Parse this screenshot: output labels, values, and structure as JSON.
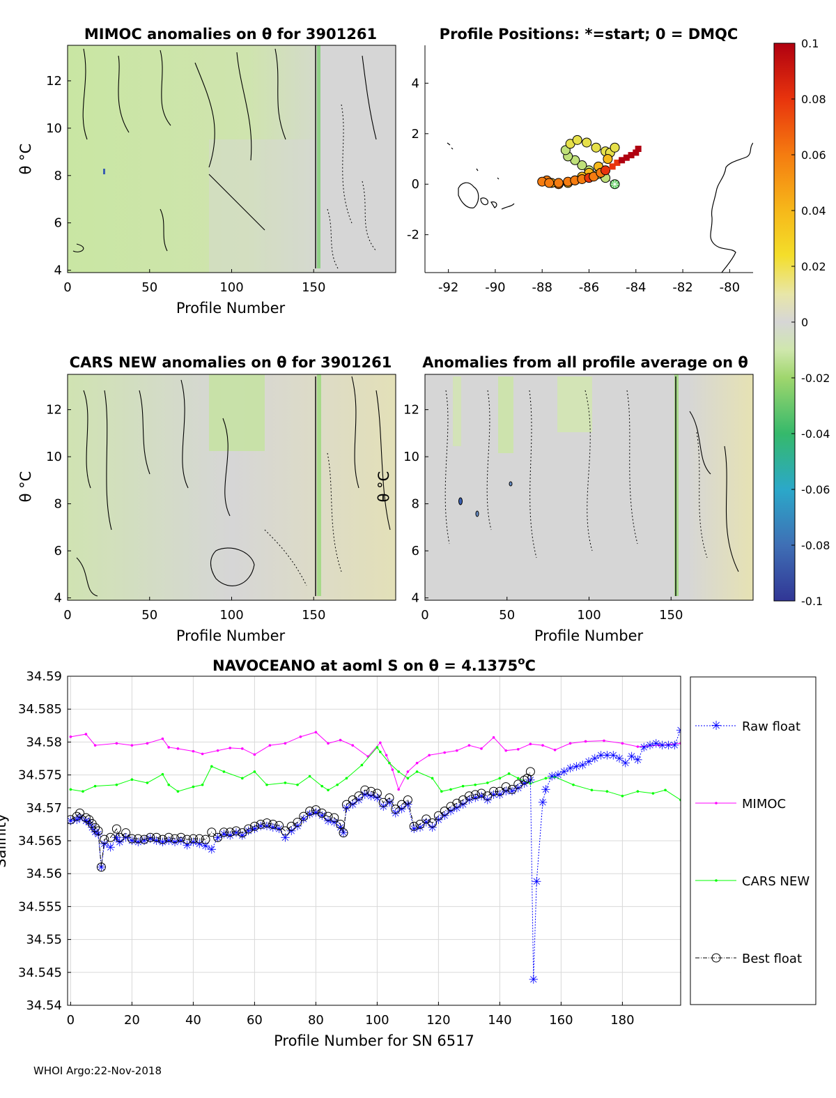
{
  "footer": "WHOI Argo:22-Nov-2018",
  "float_id": "3901261",
  "colors": {
    "raw": "#0000ff",
    "mimoc": "#ff00ff",
    "cars": "#00ff00",
    "best": "#000000",
    "field": "#d6d6d6",
    "anomaly_green": "#c9e6a3",
    "grid": "#d9d9d9"
  },
  "chart_data": [
    {
      "id": "mimoc_anom",
      "type": "heatmap",
      "title": "MIMOC anomalies on θ  for 3901261",
      "xlabel": "Profile Number",
      "ylabel": "θ °C",
      "xlim": [
        0,
        200
      ],
      "ylim": [
        3.9,
        13.5
      ],
      "xticks": [
        0,
        50,
        100,
        150
      ],
      "yticks": [
        4,
        6,
        8,
        10,
        12
      ]
    },
    {
      "id": "positions",
      "type": "scatter",
      "title": "Profile Positions: *=start; 0 = DMQC",
      "xlim": [
        -93,
        -79
      ],
      "ylim": [
        -3.5,
        5.5
      ],
      "xticks": [
        -92,
        -90,
        -88,
        -86,
        -84,
        -82,
        -80
      ],
      "yticks": [
        -2,
        0,
        2,
        4
      ],
      "track_lon": [
        -84.9,
        -85.3,
        -85.6,
        -86.0,
        -86.3,
        -86.6,
        -86.9,
        -87.0,
        -86.8,
        -86.5,
        -86.1,
        -85.7,
        -85.3,
        -85.1,
        -84.9,
        -85.2,
        -85.6,
        -86.0,
        -86.3,
        -86.6,
        -86.9,
        -87.3,
        -87.6,
        -87.8,
        -88.0,
        -87.7,
        -87.3,
        -86.9,
        -86.6,
        -86.3,
        -86.0,
        -85.8,
        -85.5,
        -85.3,
        -85.0,
        -84.8,
        -84.6,
        -84.4,
        -84.2,
        -84.0,
        -83.9
      ],
      "track_lat": [
        0.0,
        0.25,
        0.4,
        0.55,
        0.75,
        0.95,
        1.1,
        1.35,
        1.6,
        1.75,
        1.65,
        1.45,
        1.3,
        1.25,
        1.45,
        1.0,
        0.7,
        0.45,
        0.3,
        0.15,
        0.05,
        0.0,
        0.05,
        0.15,
        0.1,
        0.05,
        0.05,
        0.1,
        0.15,
        0.2,
        0.25,
        0.3,
        0.45,
        0.55,
        0.7,
        0.85,
        0.95,
        1.05,
        1.15,
        1.25,
        1.4
      ],
      "value_min": -0.1,
      "value_max": 0.1
    },
    {
      "id": "colorbar",
      "type": "heatmap",
      "ticks": [
        0.1,
        0.08,
        0.06,
        0.04,
        0.02,
        0,
        -0.02,
        -0.04,
        -0.06,
        -0.08,
        -0.1
      ],
      "tick_labels": [
        "0.1",
        "0.08",
        "0.06",
        "0.04",
        "0.02",
        "0",
        "-0.02",
        "-0.04",
        "-0.06",
        "-0.08",
        "-0.1"
      ]
    },
    {
      "id": "cars_anom",
      "type": "heatmap",
      "title": "CARS NEW anomalies on θ for 3901261",
      "xlabel": "Profile Number",
      "ylabel": "θ °C",
      "xlim": [
        0,
        200
      ],
      "ylim": [
        3.9,
        13.5
      ],
      "xticks": [
        0,
        50,
        100,
        150
      ],
      "yticks": [
        4,
        6,
        8,
        10,
        12
      ]
    },
    {
      "id": "avg_anom",
      "type": "heatmap",
      "title": "Anomalies from all profile average on θ",
      "xlabel": "Profile Number",
      "ylabel": "θ °C",
      "xlim": [
        0,
        200
      ],
      "ylim": [
        3.9,
        13.5
      ],
      "xticks": [
        0,
        50,
        100,
        150
      ],
      "yticks": [
        4,
        6,
        8,
        10,
        12
      ]
    },
    {
      "id": "salinity",
      "type": "line",
      "title_main": "NAVOCEANO at aoml S on θ = 4.1375",
      "title_sup": "o",
      "title_end": "C",
      "xlabel": "Profile Number for SN 6517",
      "ylabel": "Salinity",
      "xlim": [
        -1,
        199
      ],
      "ylim": [
        34.54,
        34.59
      ],
      "xticks": [
        0,
        20,
        40,
        60,
        80,
        100,
        120,
        140,
        160,
        180
      ],
      "yticks": [
        34.54,
        34.545,
        34.55,
        34.555,
        34.56,
        34.565,
        34.57,
        34.575,
        34.58,
        34.585,
        34.59
      ],
      "ytick_labels": [
        "34.54",
        "34.545",
        "34.55",
        "34.555",
        "34.56",
        "34.565",
        "34.57",
        "34.575",
        "34.58",
        "34.585",
        "34.59"
      ],
      "legend": [
        "Raw float",
        "MIMOC",
        "CARS NEW",
        "Best float"
      ],
      "series": {
        "mimoc": {
          "x": [
            0,
            5,
            8,
            15,
            20,
            25,
            30,
            32,
            35,
            40,
            43,
            48,
            52,
            56,
            60,
            65,
            70,
            75,
            80,
            84,
            88,
            92,
            97,
            101,
            103,
            105,
            107,
            110,
            113,
            117,
            122,
            126,
            130,
            134,
            138,
            142,
            146,
            150,
            154,
            158,
            163,
            168,
            174,
            180,
            185,
            192,
            199
          ],
          "y": [
            34.5808,
            34.5812,
            34.5795,
            34.5798,
            34.5795,
            34.5798,
            34.5805,
            34.5792,
            34.579,
            34.5786,
            34.5782,
            34.5787,
            34.5791,
            34.579,
            34.5781,
            34.5795,
            34.5798,
            34.5808,
            34.5815,
            34.5798,
            34.5803,
            34.5795,
            34.5778,
            34.5799,
            34.578,
            34.5758,
            34.5728,
            34.5755,
            34.5768,
            34.578,
            34.5784,
            34.5787,
            34.5795,
            34.579,
            34.5807,
            34.5787,
            34.5789,
            34.5797,
            34.5795,
            34.5788,
            34.5798,
            34.5801,
            34.5802,
            34.5798,
            34.5793,
            34.5795,
            34.5798
          ]
        },
        "cars": {
          "x": [
            0,
            4,
            8,
            15,
            20,
            25,
            30,
            32,
            35,
            40,
            43,
            46,
            50,
            56,
            60,
            64,
            70,
            74,
            78,
            82,
            84,
            87,
            90,
            95,
            100,
            101,
            104,
            107,
            110,
            113,
            118,
            121,
            124,
            128,
            132,
            136,
            140,
            143,
            146,
            150,
            155,
            158,
            164,
            170,
            175,
            180,
            185,
            190,
            194,
            199
          ],
          "y": [
            34.5728,
            34.5725,
            34.5733,
            34.5735,
            34.5743,
            34.5738,
            34.5751,
            34.5735,
            34.5725,
            34.5732,
            34.5735,
            34.5763,
            34.5755,
            34.5745,
            34.5755,
            34.5735,
            34.5738,
            34.5735,
            34.5748,
            34.5733,
            34.5727,
            34.5735,
            34.5745,
            34.5765,
            34.5792,
            34.5785,
            34.5768,
            34.5755,
            34.5745,
            34.5755,
            34.5745,
            34.5725,
            34.5728,
            34.5733,
            34.5735,
            34.5738,
            34.5745,
            34.5752,
            34.5745,
            34.5737,
            34.5745,
            34.5747,
            34.5735,
            34.5727,
            34.5725,
            34.5718,
            34.5725,
            34.5722,
            34.5727,
            34.5712
          ]
        },
        "best": {
          "x": [
            0,
            2,
            3,
            5,
            6,
            7,
            8,
            9,
            10,
            11,
            13,
            15,
            16,
            18,
            20,
            22,
            24,
            26,
            28,
            30,
            32,
            34,
            36,
            38,
            40,
            42,
            44,
            46,
            48,
            50,
            52,
            54,
            56,
            58,
            60,
            62,
            64,
            66,
            68,
            70,
            72,
            74,
            76,
            78,
            80,
            82,
            84,
            86,
            88,
            89,
            90,
            92,
            94,
            96,
            98,
            100,
            102,
            104,
            106,
            108,
            110,
            112,
            114,
            116,
            118,
            120,
            122,
            124,
            126,
            128,
            130,
            132,
            134,
            136,
            138,
            140,
            142,
            144,
            146,
            148,
            149,
            150
          ],
          "y": [
            34.5682,
            34.5687,
            34.5692,
            34.5685,
            34.5682,
            34.5676,
            34.567,
            34.5665,
            34.561,
            34.5652,
            34.5655,
            34.5668,
            34.5655,
            34.5662,
            34.5653,
            34.5653,
            34.5652,
            34.5655,
            34.5655,
            34.5652,
            34.5655,
            34.5653,
            34.5655,
            34.5652,
            34.5653,
            34.5653,
            34.5652,
            34.5663,
            34.5655,
            34.5663,
            34.5663,
            34.5665,
            34.5662,
            34.5668,
            34.5672,
            34.5675,
            34.5677,
            34.5675,
            34.5673,
            34.5665,
            34.5672,
            34.5678,
            34.5687,
            34.5695,
            34.5697,
            34.5692,
            34.5687,
            34.5685,
            34.5675,
            34.5662,
            34.5705,
            34.5712,
            34.5718,
            34.5727,
            34.5725,
            34.5722,
            34.5708,
            34.5715,
            34.5698,
            34.5705,
            34.5712,
            34.5672,
            34.5675,
            34.5683,
            34.5677,
            34.5688,
            34.5695,
            34.5702,
            34.5707,
            34.5712,
            34.5718,
            34.572,
            34.5722,
            34.5718,
            34.5725,
            34.5725,
            34.5732,
            34.5728,
            34.5736,
            34.5742,
            34.5745,
            34.5755
          ]
        },
        "raw": {
          "x": [
            0,
            2,
            3,
            5,
            6,
            7,
            8,
            9,
            10,
            11,
            13,
            15,
            16,
            18,
            20,
            22,
            24,
            26,
            28,
            30,
            32,
            34,
            36,
            38,
            40,
            42,
            44,
            46,
            48,
            50,
            52,
            54,
            56,
            58,
            60,
            62,
            64,
            66,
            68,
            70,
            72,
            74,
            76,
            78,
            80,
            82,
            84,
            86,
            88,
            89,
            90,
            92,
            94,
            96,
            98,
            100,
            102,
            104,
            106,
            108,
            110,
            112,
            114,
            116,
            118,
            120,
            122,
            124,
            126,
            128,
            130,
            132,
            134,
            136,
            138,
            140,
            142,
            144,
            146,
            148,
            150,
            151,
            152,
            154,
            155,
            157,
            159,
            161,
            163,
            165,
            167,
            169,
            171,
            173,
            175,
            177,
            179,
            181,
            183,
            185,
            187,
            189,
            191,
            193,
            195,
            197,
            199
          ],
          "y": [
            34.568,
            34.5682,
            34.5685,
            34.568,
            34.5678,
            34.567,
            34.5663,
            34.566,
            34.561,
            34.5645,
            34.564,
            34.5655,
            34.5648,
            34.5655,
            34.565,
            34.5648,
            34.565,
            34.5653,
            34.565,
            34.5648,
            34.565,
            34.5648,
            34.565,
            34.5643,
            34.5648,
            34.5645,
            34.5642,
            34.5637,
            34.5655,
            34.566,
            34.5658,
            34.5662,
            34.5658,
            34.5665,
            34.5668,
            34.5672,
            34.5672,
            34.567,
            34.5668,
            34.5655,
            34.5665,
            34.5672,
            34.5683,
            34.569,
            34.5693,
            34.5688,
            34.568,
            34.5678,
            34.567,
            34.5662,
            34.57,
            34.5705,
            34.5712,
            34.572,
            34.5718,
            34.5715,
            34.5702,
            34.5708,
            34.5692,
            34.5698,
            34.5705,
            34.5668,
            34.567,
            34.5678,
            34.567,
            34.5682,
            34.5688,
            34.5695,
            34.57,
            34.5705,
            34.5712,
            34.5715,
            34.5718,
            34.5712,
            34.572,
            34.572,
            34.5725,
            34.5725,
            34.573,
            34.5737,
            34.5742,
            34.5439,
            34.5588,
            34.5708,
            34.5728,
            34.5748,
            34.575,
            34.5755,
            34.576,
            34.5763,
            34.5765,
            34.577,
            34.5775,
            34.578,
            34.578,
            34.578,
            34.5775,
            34.5768,
            34.5778,
            34.5773,
            34.5792,
            34.5795,
            34.5798,
            34.5795,
            34.5795,
            34.5795,
            34.5818
          ]
        }
      }
    }
  ]
}
